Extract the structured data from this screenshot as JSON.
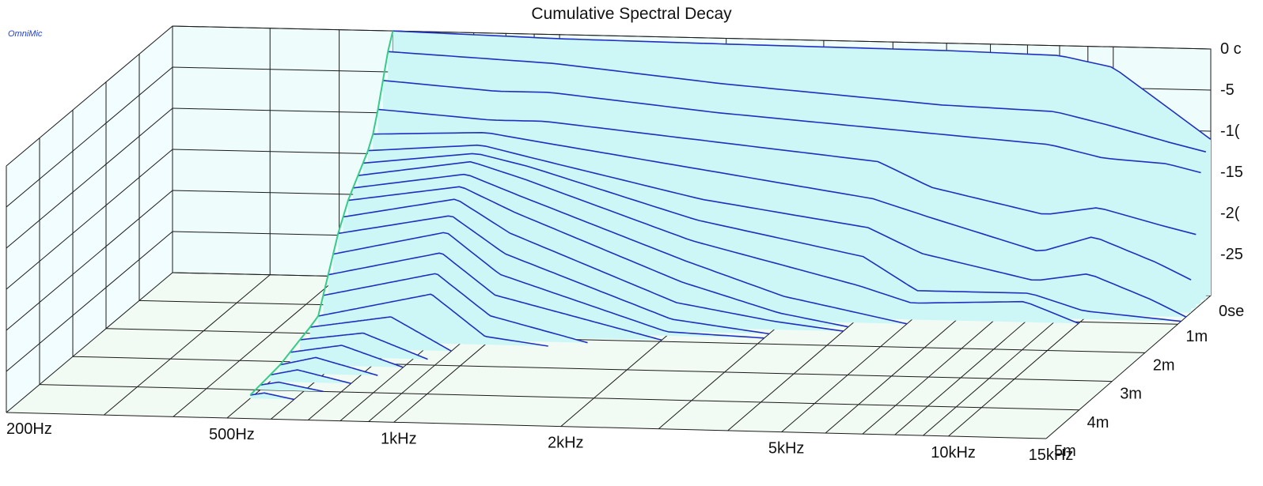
{
  "app": {
    "brand": "OmniMic"
  },
  "colors": {
    "background": "#ffffff",
    "floor": "#f2fbf3",
    "back_wall": "#eefcfc",
    "side_wall": "#f2fdff",
    "grid": "#1a1a1a",
    "fill": "#cdf7f7",
    "curve": "#1f2fbf",
    "onset_edge": "#33cc88"
  },
  "chart_data": {
    "type": "waterfall",
    "title": "Cumulative Spectral Decay",
    "x_axis": {
      "scale": "log",
      "range_hz": [
        200,
        15000
      ],
      "tick_labels": [
        {
          "hz": 200,
          "label": "200Hz"
        },
        {
          "hz": 500,
          "label": "500Hz"
        },
        {
          "hz": 1000,
          "label": "1kHz"
        },
        {
          "hz": 2000,
          "label": "2kHz"
        },
        {
          "hz": 5000,
          "label": "5kHz"
        },
        {
          "hz": 10000,
          "label": "10kHz"
        },
        {
          "hz": 15000,
          "label": "15kHz"
        }
      ],
      "minor_ticks_hz": [
        300,
        400,
        600,
        700,
        800,
        900,
        3000,
        4000,
        6000,
        7000,
        8000,
        9000
      ]
    },
    "time_axis": {
      "unit": "ms",
      "range": [
        0,
        5
      ],
      "tick_labels": [
        {
          "t": 0,
          "label": "0se"
        },
        {
          "t": 1,
          "label": "1m"
        },
        {
          "t": 2,
          "label": "2m"
        },
        {
          "t": 3,
          "label": "3m"
        },
        {
          "t": 4,
          "label": "4m"
        },
        {
          "t": 5,
          "label": "5m"
        }
      ]
    },
    "z_axis": {
      "unit": "dB",
      "range": [
        -30,
        0
      ],
      "tick_labels": [
        {
          "db": 0,
          "label": "0 c"
        },
        {
          "db": -5,
          "label": "-5"
        },
        {
          "db": -10,
          "label": "-1("
        },
        {
          "db": -15,
          "label": "-15"
        },
        {
          "db": -20,
          "label": "-2("
        },
        {
          "db": -25,
          "label": "-25"
        }
      ]
    },
    "slices": [
      {
        "t": 0.0,
        "points": [
          [
            500,
            0
          ],
          [
            1000,
            -0.5
          ],
          [
            2000,
            -0.7
          ],
          [
            5000,
            -0.9
          ],
          [
            8000,
            -1.2
          ],
          [
            10000,
            -2.5
          ],
          [
            13000,
            -8
          ],
          [
            15000,
            -11
          ]
        ]
      },
      {
        "t": 0.15,
        "points": [
          [
            500,
            -2
          ],
          [
            1000,
            -3
          ],
          [
            2000,
            -5
          ],
          [
            5000,
            -7
          ],
          [
            8000,
            -7.5
          ],
          [
            10000,
            -9
          ],
          [
            13000,
            -11
          ],
          [
            15000,
            -12
          ]
        ]
      },
      {
        "t": 0.3,
        "points": [
          [
            500,
            -5
          ],
          [
            800,
            -6
          ],
          [
            1000,
            -6
          ],
          [
            2000,
            -8
          ],
          [
            5000,
            -10
          ],
          [
            8000,
            -11
          ],
          [
            10000,
            -12.5
          ],
          [
            13000,
            -13
          ],
          [
            15000,
            -14
          ]
        ]
      },
      {
        "t": 0.45,
        "points": [
          [
            500,
            -8
          ],
          [
            800,
            -9
          ],
          [
            1000,
            -9
          ],
          [
            2000,
            -11
          ],
          [
            4000,
            -13
          ],
          [
            5000,
            -16
          ],
          [
            8000,
            -19
          ],
          [
            10000,
            -18
          ],
          [
            13000,
            -20
          ],
          [
            15000,
            -21
          ]
        ]
      },
      {
        "t": 0.6,
        "points": [
          [
            500,
            -10.5
          ],
          [
            800,
            -10
          ],
          [
            1000,
            -11
          ],
          [
            2000,
            -14
          ],
          [
            4000,
            -17
          ],
          [
            5000,
            -19
          ],
          [
            8000,
            -23
          ],
          [
            10000,
            -21
          ],
          [
            13000,
            -24
          ],
          [
            15000,
            -26
          ]
        ]
      },
      {
        "t": 0.75,
        "points": [
          [
            500,
            -12
          ],
          [
            800,
            -11
          ],
          [
            1000,
            -12.5
          ],
          [
            2000,
            -17
          ],
          [
            4000,
            -20
          ],
          [
            5000,
            -23
          ],
          [
            8000,
            -26
          ],
          [
            10000,
            -25
          ],
          [
            13000,
            -28
          ],
          [
            15000,
            -30
          ]
        ]
      },
      {
        "t": 0.9,
        "points": [
          [
            500,
            -13
          ],
          [
            800,
            -11.5
          ],
          [
            1000,
            -13
          ],
          [
            2000,
            -19
          ],
          [
            4000,
            -23
          ],
          [
            5000,
            -27
          ],
          [
            8000,
            -27
          ],
          [
            10000,
            -29
          ],
          [
            15000,
            -30
          ]
        ]
      },
      {
        "t": 1.05,
        "points": [
          [
            500,
            -14
          ],
          [
            800,
            -12
          ],
          [
            1000,
            -14
          ],
          [
            2000,
            -21
          ],
          [
            4000,
            -26
          ],
          [
            5000,
            -28
          ],
          [
            8000,
            -27.5
          ],
          [
            10000,
            -30
          ]
        ]
      },
      {
        "t": 1.2,
        "points": [
          [
            500,
            -15
          ],
          [
            800,
            -13
          ],
          [
            1000,
            -15.5
          ],
          [
            2000,
            -23
          ],
          [
            3000,
            -27
          ],
          [
            5000,
            -30
          ]
        ]
      },
      {
        "t": 1.35,
        "points": [
          [
            500,
            -16
          ],
          [
            800,
            -14
          ],
          [
            1000,
            -17
          ],
          [
            2000,
            -25
          ],
          [
            3000,
            -28.5
          ],
          [
            4000,
            -30
          ]
        ]
      },
      {
        "t": 1.5,
        "points": [
          [
            500,
            -17.5
          ],
          [
            800,
            -15
          ],
          [
            1000,
            -19
          ],
          [
            2000,
            -27
          ],
          [
            3000,
            -29
          ],
          [
            4000,
            -30
          ]
        ]
      },
      {
        "t": 1.65,
        "points": [
          [
            500,
            -19
          ],
          [
            800,
            -16.5
          ],
          [
            1000,
            -21
          ],
          [
            2000,
            -28.5
          ],
          [
            3000,
            -30
          ]
        ]
      },
      {
        "t": 1.8,
        "points": [
          [
            500,
            -21
          ],
          [
            800,
            -18
          ],
          [
            1000,
            -23
          ],
          [
            2000,
            -29.5
          ],
          [
            3000,
            -30
          ]
        ]
      },
      {
        "t": 1.95,
        "points": [
          [
            500,
            -23
          ],
          [
            800,
            -20
          ],
          [
            1000,
            -25
          ],
          [
            2000,
            -30
          ]
        ]
      },
      {
        "t": 2.1,
        "points": [
          [
            500,
            -25
          ],
          [
            800,
            -22
          ],
          [
            1000,
            -27
          ],
          [
            1500,
            -30
          ]
        ]
      },
      {
        "t": 2.25,
        "points": [
          [
            500,
            -27
          ],
          [
            800,
            -24
          ],
          [
            1000,
            -29
          ],
          [
            1300,
            -30
          ]
        ]
      },
      {
        "t": 2.5,
        "points": [
          [
            500,
            -27.5
          ],
          [
            700,
            -26
          ],
          [
            900,
            -30
          ]
        ]
      },
      {
        "t": 2.8,
        "points": [
          [
            500,
            -28
          ],
          [
            650,
            -27
          ],
          [
            850,
            -30
          ]
        ]
      },
      {
        "t": 3.1,
        "points": [
          [
            500,
            -28.5
          ],
          [
            620,
            -27.5
          ],
          [
            800,
            -30
          ]
        ]
      },
      {
        "t": 3.4,
        "points": [
          [
            500,
            -29
          ],
          [
            580,
            -28
          ],
          [
            750,
            -30
          ]
        ]
      },
      {
        "t": 3.7,
        "points": [
          [
            500,
            -29.2
          ],
          [
            560,
            -28.5
          ],
          [
            700,
            -30
          ]
        ]
      },
      {
        "t": 4.0,
        "points": [
          [
            500,
            -29.4
          ],
          [
            540,
            -29
          ],
          [
            650,
            -30
          ]
        ]
      },
      {
        "t": 4.3,
        "points": [
          [
            500,
            -29.6
          ],
          [
            530,
            -29.3
          ],
          [
            600,
            -30
          ]
        ]
      }
    ]
  }
}
